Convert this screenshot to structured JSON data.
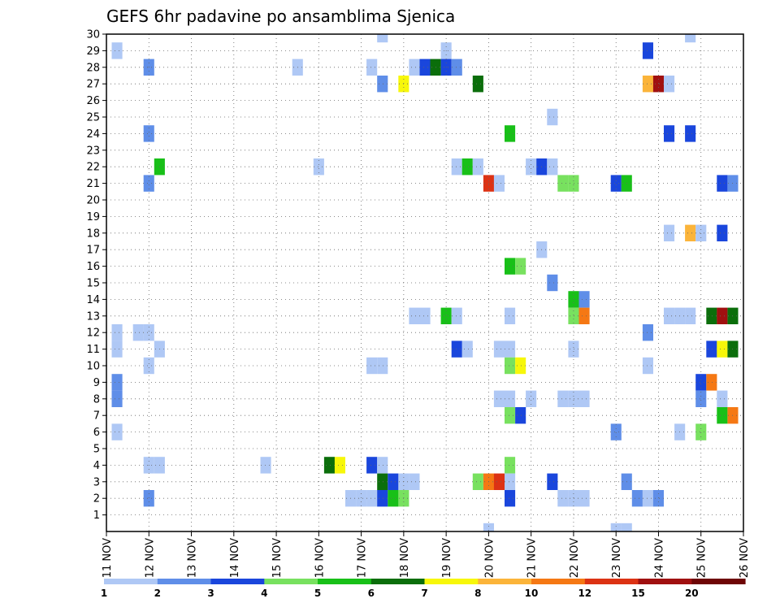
{
  "chart_data": {
    "type": "heatmap",
    "title": "GEFS 6hr padavine po ansamblima Sjenica",
    "x_ticks": [
      "11 NOV",
      "12 NOV",
      "13 NOV",
      "14 NOV",
      "15 NOV",
      "16 NOV",
      "17 NOV",
      "18 NOV",
      "19 NOV",
      "20 NOV",
      "21 NOV",
      "22 NOV",
      "23 NOV",
      "24 NOV",
      "25 NOV",
      "26 NOV"
    ],
    "y_ticks": [
      "1",
      "2",
      "3",
      "4",
      "5",
      "6",
      "7",
      "8",
      "9",
      "10",
      "11",
      "12",
      "13",
      "14",
      "15",
      "16",
      "17",
      "18",
      "19",
      "20",
      "21",
      "22",
      "23",
      "24",
      "25",
      "26",
      "27",
      "28",
      "29",
      "30"
    ],
    "x_range_days": [
      11,
      26
    ],
    "y_range_members": [
      0,
      30
    ],
    "grid": true,
    "colorbar": {
      "labels": [
        "1",
        "2",
        "3",
        "4",
        "5",
        "6",
        "7",
        "8",
        "10",
        "12",
        "15",
        "20"
      ],
      "colors": [
        "#afc8f5",
        "#5f8ee8",
        "#1a46dc",
        "#78e15f",
        "#18c018",
        "#0b6e0b",
        "#f7f70a",
        "#fbb43a",
        "#f57814",
        "#dc3214",
        "#a01010",
        "#6e0505"
      ]
    },
    "cells": [
      {
        "d": 11.25,
        "m": 29,
        "c": 0
      },
      {
        "d": 11.25,
        "m": 12,
        "c": 0
      },
      {
        "d": 11.25,
        "m": 11,
        "c": 0
      },
      {
        "d": 11.25,
        "m": 9,
        "c": 1
      },
      {
        "d": 11.25,
        "m": 8,
        "c": 1
      },
      {
        "d": 11.25,
        "m": 6,
        "c": 0
      },
      {
        "d": 11.75,
        "m": 12,
        "c": 0
      },
      {
        "d": 12.0,
        "m": 28,
        "c": 1
      },
      {
        "d": 12.0,
        "m": 24,
        "c": 1
      },
      {
        "d": 12.0,
        "m": 21,
        "c": 1
      },
      {
        "d": 12.0,
        "m": 12,
        "c": 0
      },
      {
        "d": 12.0,
        "m": 10,
        "c": 0
      },
      {
        "d": 12.0,
        "m": 4,
        "c": 0
      },
      {
        "d": 12.0,
        "m": 2,
        "c": 1
      },
      {
        "d": 12.25,
        "m": 22,
        "c": 4
      },
      {
        "d": 12.25,
        "m": 11,
        "c": 0
      },
      {
        "d": 12.25,
        "m": 4,
        "c": 0
      },
      {
        "d": 14.75,
        "m": 4,
        "c": 0
      },
      {
        "d": 15.5,
        "m": 28,
        "c": 0
      },
      {
        "d": 16.0,
        "m": 22,
        "c": 0
      },
      {
        "d": 16.25,
        "m": 4,
        "c": 5
      },
      {
        "d": 16.5,
        "m": 4,
        "c": 6
      },
      {
        "d": 16.75,
        "m": 2,
        "c": 0
      },
      {
        "d": 17.0,
        "m": 2,
        "c": 0
      },
      {
        "d": 17.25,
        "m": 28,
        "c": 0
      },
      {
        "d": 17.25,
        "m": 10,
        "c": 0
      },
      {
        "d": 17.25,
        "m": 4,
        "c": 2
      },
      {
        "d": 17.25,
        "m": 2,
        "c": 0
      },
      {
        "d": 17.5,
        "m": 30,
        "c": 0
      },
      {
        "d": 17.5,
        "m": 27,
        "c": 1
      },
      {
        "d": 17.5,
        "m": 10,
        "c": 0
      },
      {
        "d": 17.5,
        "m": 4,
        "c": 0
      },
      {
        "d": 17.5,
        "m": 3,
        "c": 5
      },
      {
        "d": 17.5,
        "m": 2,
        "c": 2
      },
      {
        "d": 17.75,
        "m": 3,
        "c": 2
      },
      {
        "d": 17.75,
        "m": 2,
        "c": 4
      },
      {
        "d": 18.0,
        "m": 27,
        "c": 6
      },
      {
        "d": 18.0,
        "m": 3,
        "c": 0
      },
      {
        "d": 18.0,
        "m": 2,
        "c": 3
      },
      {
        "d": 18.25,
        "m": 28,
        "c": 0
      },
      {
        "d": 18.25,
        "m": 13,
        "c": 0
      },
      {
        "d": 18.25,
        "m": 3,
        "c": 0
      },
      {
        "d": 18.5,
        "m": 28,
        "c": 2
      },
      {
        "d": 18.5,
        "m": 13,
        "c": 0
      },
      {
        "d": 18.75,
        "m": 28,
        "c": 5
      },
      {
        "d": 19.0,
        "m": 29,
        "c": 0
      },
      {
        "d": 19.0,
        "m": 28,
        "c": 2
      },
      {
        "d": 19.0,
        "m": 13,
        "c": 4
      },
      {
        "d": 19.25,
        "m": 28,
        "c": 1
      },
      {
        "d": 19.25,
        "m": 22,
        "c": 0
      },
      {
        "d": 19.25,
        "m": 13,
        "c": 0
      },
      {
        "d": 19.25,
        "m": 11,
        "c": 2
      },
      {
        "d": 19.5,
        "m": 22,
        "c": 4
      },
      {
        "d": 19.5,
        "m": 11,
        "c": 0
      },
      {
        "d": 19.75,
        "m": 27,
        "c": 5
      },
      {
        "d": 19.75,
        "m": 22,
        "c": 0
      },
      {
        "d": 19.75,
        "m": 3,
        "c": 3
      },
      {
        "d": 20.0,
        "m": 21,
        "c": 9
      },
      {
        "d": 20.0,
        "m": 3,
        "c": 8
      },
      {
        "d": 20.0,
        "m": 0,
        "c": 0
      },
      {
        "d": 20.25,
        "m": 21,
        "c": 0
      },
      {
        "d": 20.25,
        "m": 11,
        "c": 0
      },
      {
        "d": 20.25,
        "m": 8,
        "c": 0
      },
      {
        "d": 20.25,
        "m": 3,
        "c": 9
      },
      {
        "d": 20.5,
        "m": 24,
        "c": 4
      },
      {
        "d": 20.5,
        "m": 16,
        "c": 4
      },
      {
        "d": 20.5,
        "m": 13,
        "c": 0
      },
      {
        "d": 20.5,
        "m": 11,
        "c": 0
      },
      {
        "d": 20.5,
        "m": 10,
        "c": 3
      },
      {
        "d": 20.5,
        "m": 8,
        "c": 0
      },
      {
        "d": 20.5,
        "m": 7,
        "c": 3
      },
      {
        "d": 20.5,
        "m": 4,
        "c": 3
      },
      {
        "d": 20.5,
        "m": 3,
        "c": 0
      },
      {
        "d": 20.5,
        "m": 2,
        "c": 2
      },
      {
        "d": 20.75,
        "m": 16,
        "c": 3
      },
      {
        "d": 20.75,
        "m": 10,
        "c": 6
      },
      {
        "d": 20.75,
        "m": 7,
        "c": 2
      },
      {
        "d": 21.0,
        "m": 22,
        "c": 0
      },
      {
        "d": 21.0,
        "m": 8,
        "c": 0
      },
      {
        "d": 21.25,
        "m": 22,
        "c": 2
      },
      {
        "d": 21.25,
        "m": 17,
        "c": 0
      },
      {
        "d": 21.5,
        "m": 25,
        "c": 0
      },
      {
        "d": 21.5,
        "m": 22,
        "c": 0
      },
      {
        "d": 21.5,
        "m": 15,
        "c": 1
      },
      {
        "d": 21.5,
        "m": 3,
        "c": 2
      },
      {
        "d": 21.75,
        "m": 21,
        "c": 3
      },
      {
        "d": 21.75,
        "m": 8,
        "c": 0
      },
      {
        "d": 21.75,
        "m": 2,
        "c": 0
      },
      {
        "d": 22.0,
        "m": 21,
        "c": 3
      },
      {
        "d": 22.0,
        "m": 14,
        "c": 4
      },
      {
        "d": 22.0,
        "m": 13,
        "c": 3
      },
      {
        "d": 22.0,
        "m": 11,
        "c": 0
      },
      {
        "d": 22.0,
        "m": 8,
        "c": 0
      },
      {
        "d": 22.0,
        "m": 2,
        "c": 0
      },
      {
        "d": 22.25,
        "m": 14,
        "c": 1
      },
      {
        "d": 22.25,
        "m": 13,
        "c": 8
      },
      {
        "d": 22.25,
        "m": 8,
        "c": 0
      },
      {
        "d": 22.25,
        "m": 2,
        "c": 0
      },
      {
        "d": 23.0,
        "m": 21,
        "c": 2
      },
      {
        "d": 23.0,
        "m": 6,
        "c": 1
      },
      {
        "d": 23.0,
        "m": 0,
        "c": 0
      },
      {
        "d": 23.25,
        "m": 21,
        "c": 4
      },
      {
        "d": 23.25,
        "m": 3,
        "c": 1
      },
      {
        "d": 23.25,
        "m": 0,
        "c": 0
      },
      {
        "d": 23.5,
        "m": 2,
        "c": 1
      },
      {
        "d": 23.75,
        "m": 29,
        "c": 2
      },
      {
        "d": 23.75,
        "m": 27,
        "c": 7
      },
      {
        "d": 23.75,
        "m": 12,
        "c": 1
      },
      {
        "d": 23.75,
        "m": 10,
        "c": 0
      },
      {
        "d": 23.75,
        "m": 2,
        "c": 0
      },
      {
        "d": 24.0,
        "m": 27,
        "c": 10
      },
      {
        "d": 24.0,
        "m": 2,
        "c": 1
      },
      {
        "d": 24.25,
        "m": 27,
        "c": 0
      },
      {
        "d": 24.25,
        "m": 24,
        "c": 2
      },
      {
        "d": 24.25,
        "m": 18,
        "c": 0
      },
      {
        "d": 24.25,
        "m": 13,
        "c": 0
      },
      {
        "d": 24.5,
        "m": 13,
        "c": 0
      },
      {
        "d": 24.5,
        "m": 6,
        "c": 0
      },
      {
        "d": 24.75,
        "m": 30,
        "c": 0
      },
      {
        "d": 24.75,
        "m": 24,
        "c": 2
      },
      {
        "d": 24.75,
        "m": 18,
        "c": 7
      },
      {
        "d": 24.75,
        "m": 13,
        "c": 0
      },
      {
        "d": 25.0,
        "m": 18,
        "c": 0
      },
      {
        "d": 25.0,
        "m": 9,
        "c": 2
      },
      {
        "d": 25.0,
        "m": 8,
        "c": 1
      },
      {
        "d": 25.0,
        "m": 6,
        "c": 3
      },
      {
        "d": 25.25,
        "m": 13,
        "c": 5
      },
      {
        "d": 25.25,
        "m": 11,
        "c": 2
      },
      {
        "d": 25.25,
        "m": 9,
        "c": 8
      },
      {
        "d": 25.5,
        "m": 21,
        "c": 2
      },
      {
        "d": 25.5,
        "m": 18,
        "c": 2
      },
      {
        "d": 25.5,
        "m": 13,
        "c": 10
      },
      {
        "d": 25.5,
        "m": 11,
        "c": 6
      },
      {
        "d": 25.5,
        "m": 8,
        "c": 0
      },
      {
        "d": 25.5,
        "m": 7,
        "c": 4
      },
      {
        "d": 25.75,
        "m": 21,
        "c": 1
      },
      {
        "d": 25.75,
        "m": 13,
        "c": 5
      },
      {
        "d": 25.75,
        "m": 11,
        "c": 5
      },
      {
        "d": 25.75,
        "m": 7,
        "c": 8
      }
    ]
  }
}
